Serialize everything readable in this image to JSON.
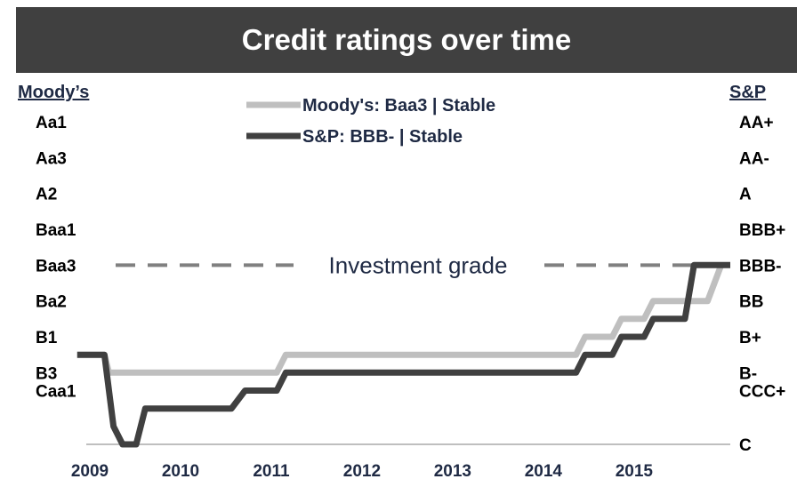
{
  "chart_data": {
    "type": "line",
    "title": "Credit ratings over time",
    "left_axis": {
      "label": "Moody’s",
      "scale": [
        "C",
        "Caa3",
        "Caa2",
        "Caa1",
        "B3",
        "B2",
        "B1",
        "Ba3",
        "Ba2",
        "Ba1",
        "Baa3",
        "Baa2",
        "Baa1",
        "A3",
        "A2",
        "A1",
        "Aa3",
        "Aa2",
        "Aa1"
      ],
      "tick_labels": [
        "Aa1",
        "Aa3",
        "A2",
        "Baa1",
        "Baa3",
        "Ba2",
        "B1",
        "B3",
        "Caa1"
      ]
    },
    "right_axis": {
      "label": "S&P",
      "scale": [
        "C",
        "CCC-",
        "CCC",
        "CCC+",
        "B-",
        "B",
        "B+",
        "BB-",
        "BB",
        "BB+",
        "BBB-",
        "BBB",
        "BBB+",
        "A-",
        "A",
        "A+",
        "AA-",
        "AA",
        "AA+"
      ],
      "tick_labels": [
        "AA+",
        "AA-",
        "A",
        "BBB+",
        "BBB-",
        "BB",
        "B+",
        "B-",
        "CCC+",
        "C"
      ]
    },
    "x_ticks": [
      "2009",
      "2010",
      "2011",
      "2012",
      "2013",
      "2014",
      "2015"
    ],
    "xlim": [
      2009,
      2016.1
    ],
    "ylim": [
      0,
      18
    ],
    "legend_placement": "top-center",
    "annotation": {
      "text": "Investment grade",
      "level": 10
    },
    "series": [
      {
        "name": "Moody's: Baa3 | Stable",
        "color": "#bfbfbf",
        "points": [
          [
            2008.9,
            5
          ],
          [
            2009.2,
            5
          ],
          [
            2009.25,
            4
          ],
          [
            2011.1,
            4
          ],
          [
            2011.2,
            5
          ],
          [
            2014.4,
            5
          ],
          [
            2014.5,
            6
          ],
          [
            2014.8,
            6
          ],
          [
            2014.9,
            7
          ],
          [
            2015.15,
            7
          ],
          [
            2015.25,
            8
          ],
          [
            2015.85,
            8
          ],
          [
            2016.0,
            10
          ]
        ]
      },
      {
        "name": "S&P: BBB- | Stable",
        "color": "#404040",
        "points": [
          [
            2008.9,
            5
          ],
          [
            2009.2,
            5
          ],
          [
            2009.3,
            1
          ],
          [
            2009.4,
            0
          ],
          [
            2009.55,
            0
          ],
          [
            2009.65,
            2
          ],
          [
            2010.6,
            2
          ],
          [
            2010.75,
            3
          ],
          [
            2011.1,
            3
          ],
          [
            2011.2,
            4
          ],
          [
            2014.4,
            4
          ],
          [
            2014.5,
            5
          ],
          [
            2014.8,
            5
          ],
          [
            2014.9,
            6
          ],
          [
            2015.15,
            6
          ],
          [
            2015.25,
            7
          ],
          [
            2015.6,
            7
          ],
          [
            2015.7,
            10
          ],
          [
            2016.1,
            10
          ]
        ]
      }
    ]
  }
}
